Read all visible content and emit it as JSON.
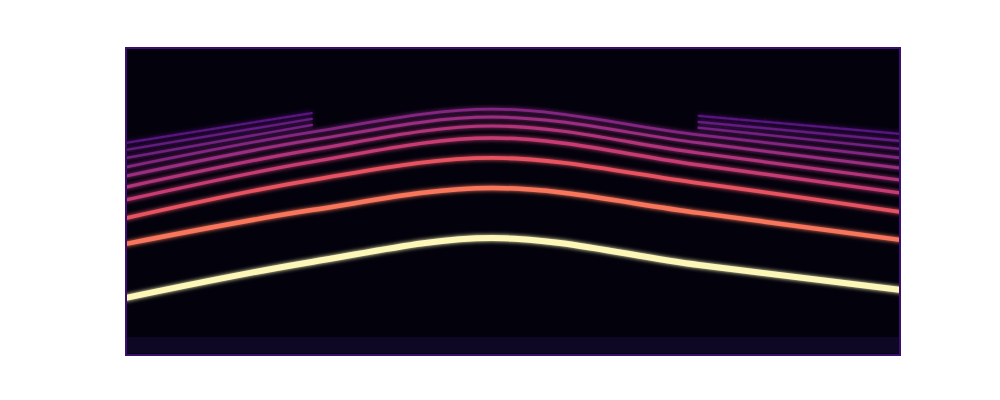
{
  "chart_data": {
    "type": "line",
    "tick_labels": false,
    "xlim": [
      0,
      100
    ],
    "ylim": [
      0,
      100
    ],
    "x": [
      0,
      24,
      47.3,
      74,
      100
    ],
    "series": [
      {
        "color": "#fcf7b8",
        "values": [
          18.6,
          30.3,
          38.1,
          29.3,
          21.2
        ]
      },
      {
        "color": "#f8765c",
        "values": [
          36.2,
          47.2,
          54.4,
          46.3,
          37.5
        ]
      },
      {
        "color": "#e85362",
        "values": [
          44.6,
          57.0,
          64.2,
          56.0,
          46.6
        ]
      },
      {
        "color": "#c73d73",
        "values": [
          50.5,
          62.9,
          70.7,
          61.9,
          52.8
        ]
      },
      {
        "color": "#b2357b",
        "values": [
          54.7,
          66.8,
          74.6,
          65.8,
          57.0
        ]
      },
      {
        "color": "#9a2d80",
        "values": [
          58.3,
          70.0,
          77.5,
          69.1,
          60.9
        ]
      },
      {
        "color": "#842681",
        "values": [
          61.2,
          72.6,
          80.1,
          71.7,
          64.2
        ]
      },
      {
        "color": "#71207f",
        "values": [
          64.2,
          74.9,
          null,
          74.0,
          67.1
        ]
      },
      {
        "color": "#651a80",
        "values": [
          66.8,
          76.9,
          null,
          75.9,
          69.7
        ]
      },
      {
        "color": "#56147d",
        "values": [
          69.1,
          78.8,
          null,
          77.9,
          72.0
        ]
      }
    ]
  }
}
